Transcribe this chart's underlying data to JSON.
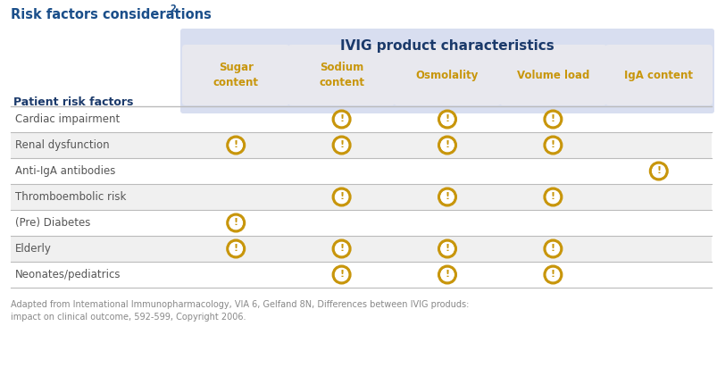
{
  "title": "Risk factors considerations",
  "title_superscript": "2",
  "header_main": "IVIG product characteristics",
  "col_header_label": "Patient risk factors",
  "columns": [
    "Sugar\ncontent",
    "Sodium\ncontent",
    "Osmolality",
    "Volume load",
    "IgA content"
  ],
  "rows": [
    "Cardiac impairment",
    "Renal dysfunction",
    "Anti-IgA antibodies",
    "Thromboembolic risk",
    "(Pre) Diabetes",
    "Elderly",
    "Neonates/pediatrics"
  ],
  "alerts": [
    [
      0,
      1,
      1,
      1,
      0
    ],
    [
      1,
      1,
      1,
      1,
      0
    ],
    [
      0,
      0,
      0,
      0,
      1
    ],
    [
      0,
      1,
      1,
      1,
      0
    ],
    [
      1,
      0,
      0,
      0,
      0
    ],
    [
      1,
      1,
      1,
      1,
      0
    ],
    [
      0,
      1,
      1,
      1,
      0
    ]
  ],
  "footer_line1": "Adapted from Intemational Immunopharmacology, VIA 6, Gelfand 8N, Differences between IVIG produds:",
  "footer_line2": "impact on clinical outcome, 592-599, Copyright 2006.",
  "title_color": "#1B4F8A",
  "header_main_color": "#1B3A6B",
  "col_header_color": "#C8960C",
  "row_label_color": "#555555",
  "alert_color": "#C8960C",
  "header_bg_color": "#D8DEF0",
  "col_header_bg_color": "#E8E8EE",
  "row_alt_color": "#F0F0F0",
  "row_white_color": "#FFFFFF",
  "border_color": "#BBBBBB",
  "footer_color": "#888888",
  "patient_label_color": "#1B3A6B",
  "fig_width": 8.04,
  "fig_height": 4.12,
  "dpi": 100
}
